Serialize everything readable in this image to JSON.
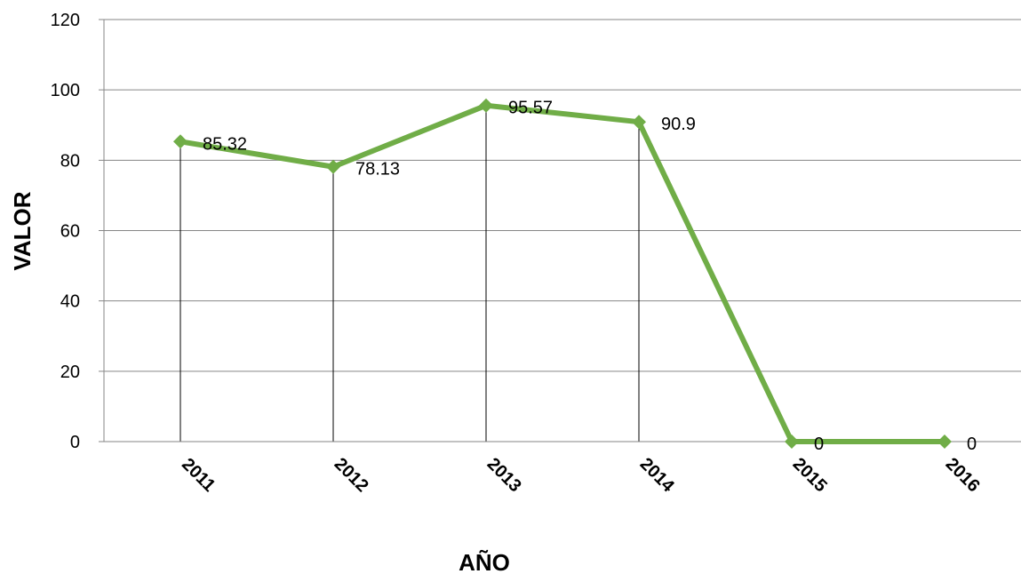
{
  "chart_data": {
    "type": "line",
    "title": "",
    "xlabel": "AÑO",
    "ylabel": "VALOR",
    "categories": [
      "2011",
      "2012",
      "2013",
      "2014",
      "2015",
      "2016"
    ],
    "series": [
      {
        "values": [
          85.32,
          78.13,
          95.57,
          90.9,
          0,
          0
        ]
      }
    ],
    "data_labels": [
      "85.32",
      "78.13",
      "95.57",
      "90.9",
      "0",
      "0"
    ],
    "y_ticks": [
      "0",
      "20",
      "40",
      "60",
      "80",
      "100",
      "120"
    ],
    "ylim": [
      0,
      120
    ],
    "grid": true,
    "drop_lines": true,
    "marker": "diamond",
    "legend": "none",
    "colors": {
      "series": "#70ad47",
      "grid": "#868686",
      "axis": "#868686",
      "drop_line": "#000000"
    }
  }
}
